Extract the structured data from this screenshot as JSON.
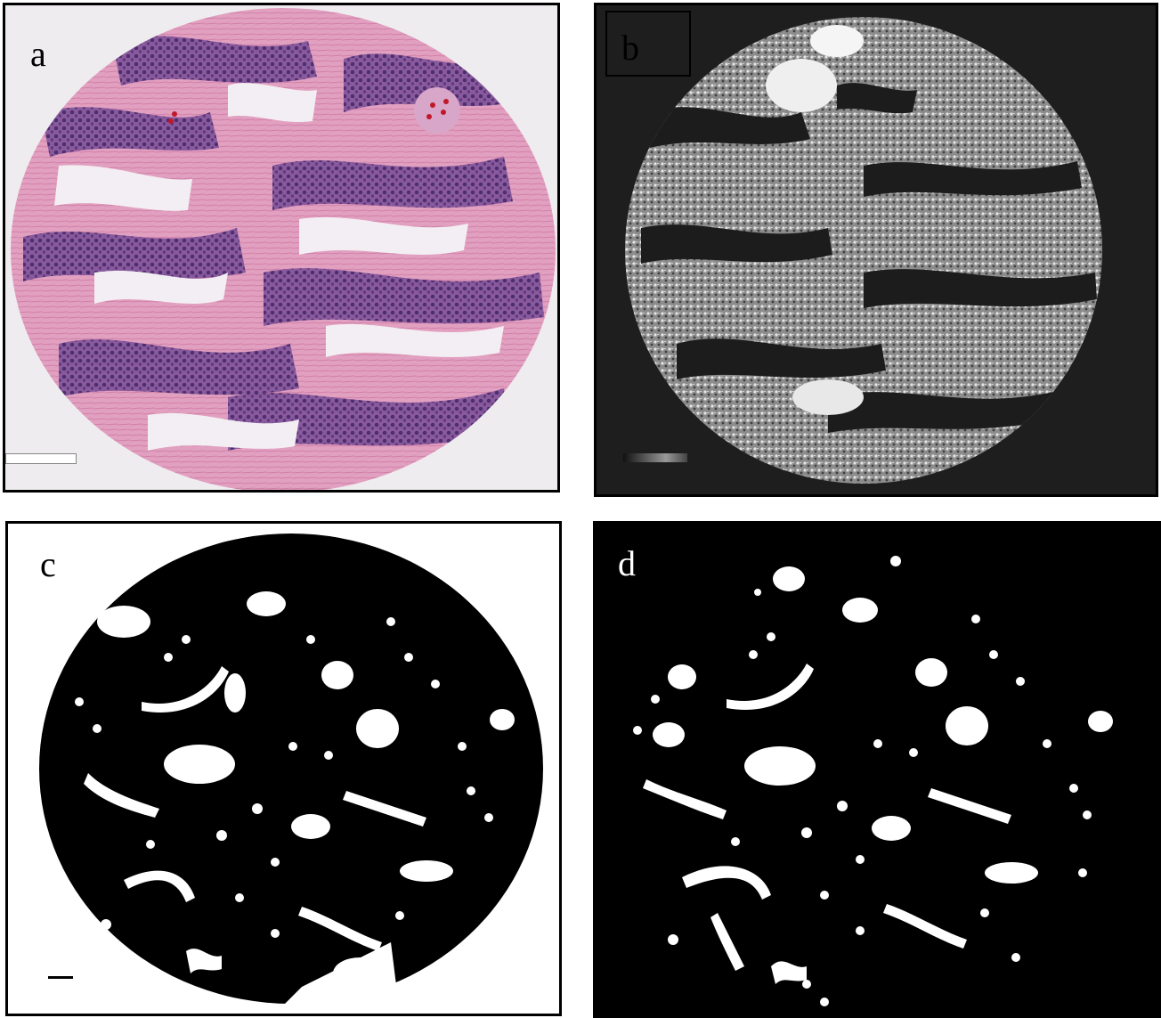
{
  "panels": [
    {
      "id": "a",
      "label": "a",
      "style": "he-stain"
    },
    {
      "id": "b",
      "label": "b",
      "style": "grayscale"
    },
    {
      "id": "c",
      "label": "c",
      "style": "binary-black-on-white"
    },
    {
      "id": "d",
      "label": "d",
      "style": "binary-white-on-black"
    }
  ],
  "colors": {
    "stroma": "#e4a3c4",
    "nuclei": "#6e4a8e",
    "background": "#eeecee",
    "blood": "#c0182a"
  }
}
